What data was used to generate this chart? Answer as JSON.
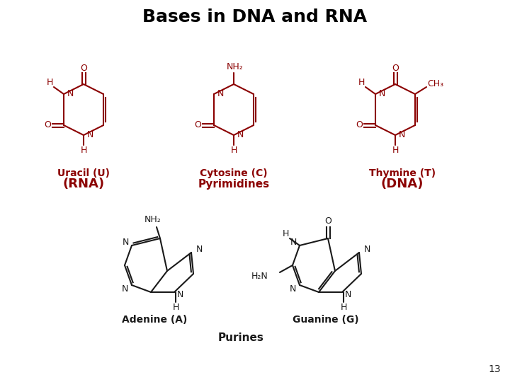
{
  "title": "Bases in DNA and RNA",
  "title_color": "#000000",
  "title_fontsize": 18,
  "title_fontweight": "bold",
  "bg_color": "#ffffff",
  "sc": "#8B0000",
  "bc": "#1a1a1a",
  "slide_number": "13",
  "labels": {
    "uracil": "Uracil (U)",
    "rna": "(RNA)",
    "cytosine": "Cytosine (C)",
    "pyrimidines": "Pyrimidines",
    "thymine": "Thymine (T)",
    "dna": "(DNA)",
    "adenine": "Adenine (A)",
    "guanine": "Guanine (G)",
    "purines": "Purines"
  }
}
